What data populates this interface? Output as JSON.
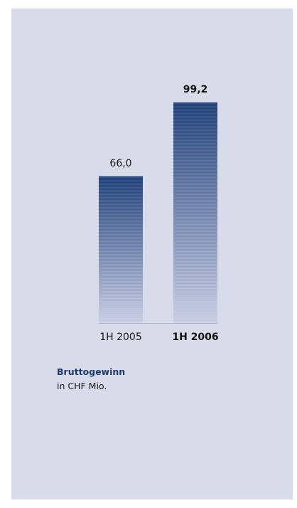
{
  "chart_data": {
    "type": "bar",
    "title": "Bruttogewinn",
    "subtitle": "in CHF Mio.",
    "categories": [
      "1H 2005",
      "1H 2006"
    ],
    "values": [
      66.0,
      99.2
    ],
    "value_labels": [
      "66,0",
      "99,2"
    ],
    "highlight_index": 1,
    "ylim": [
      0,
      100
    ],
    "grid": false,
    "legend": "none",
    "colors": {
      "bar_top": "#1f3f78",
      "bar_bottom": "#c9cde3",
      "baseline": "#b4b9d2",
      "panel": "#d8dbe9"
    }
  }
}
